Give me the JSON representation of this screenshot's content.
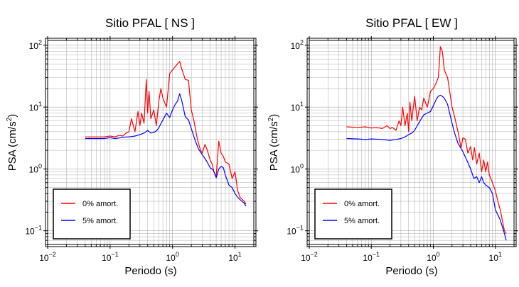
{
  "chart_data": [
    {
      "type": "line",
      "title": "Sitio PFAL [ NS ]",
      "xlabel": "Periodo (s)",
      "ylabel_main": "PSA (cm/s",
      "ylabel_sup": "2",
      "ylabel_end": ")",
      "xscale": "log",
      "yscale": "log",
      "xlim": [
        0.01,
        20
      ],
      "ylim": [
        0.06,
        120
      ],
      "grid": true,
      "legend_position": "bottom-left",
      "x_tick_labels": [
        {
          "value": 0.01,
          "base": "10",
          "exp": "−2"
        },
        {
          "value": 0.1,
          "base": "10",
          "exp": "−1"
        },
        {
          "value": 1,
          "base": "10",
          "exp": "0"
        },
        {
          "value": 10,
          "base": "10",
          "exp": "1"
        }
      ],
      "y_tick_labels": [
        {
          "value": 0.1,
          "base": "10",
          "exp": "−1"
        },
        {
          "value": 1,
          "base": "10",
          "exp": "0"
        },
        {
          "value": 10,
          "base": "10",
          "exp": "1"
        },
        {
          "value": 100,
          "base": "10",
          "exp": "2"
        }
      ],
      "series": [
        {
          "name": "0% amort.",
          "color": "#ff0000",
          "x": [
            0.04,
            0.06,
            0.08,
            0.1,
            0.12,
            0.14,
            0.16,
            0.18,
            0.2,
            0.22,
            0.25,
            0.28,
            0.3,
            0.32,
            0.35,
            0.38,
            0.4,
            0.42,
            0.45,
            0.5,
            0.55,
            0.6,
            0.65,
            0.7,
            0.8,
            0.9,
            1.0,
            1.1,
            1.2,
            1.3,
            1.4,
            1.6,
            1.8,
            2.0,
            2.2,
            2.5,
            2.8,
            3.0,
            3.3,
            3.6,
            4.0,
            4.3,
            4.6,
            5.0,
            5.5,
            6.0,
            6.5,
            7.0,
            8.0,
            9.0,
            10.0,
            11.0,
            12.0,
            14.0,
            15.0
          ],
          "y": [
            3.3,
            3.3,
            3.3,
            3.4,
            3.3,
            3.5,
            3.4,
            3.8,
            4.0,
            6.5,
            4.0,
            8.5,
            5.0,
            8.0,
            5.5,
            28.0,
            8.0,
            18.0,
            6.5,
            9.0,
            5.0,
            12.0,
            20.0,
            14.0,
            10.0,
            35.0,
            40.0,
            45.0,
            50.0,
            55.0,
            42.0,
            28.0,
            27.0,
            9.0,
            6.0,
            3.0,
            2.0,
            1.8,
            2.5,
            2.0,
            1.4,
            1.2,
            0.9,
            0.75,
            2.8,
            1.8,
            1.6,
            1.3,
            1.2,
            0.7,
            0.9,
            0.45,
            0.35,
            0.3,
            0.27
          ]
        },
        {
          "name": "5% amort.",
          "color": "#0000ff",
          "x": [
            0.04,
            0.06,
            0.08,
            0.1,
            0.12,
            0.15,
            0.18,
            0.2,
            0.25,
            0.3,
            0.35,
            0.4,
            0.45,
            0.5,
            0.55,
            0.6,
            0.65,
            0.7,
            0.8,
            0.9,
            1.0,
            1.1,
            1.2,
            1.3,
            1.4,
            1.6,
            1.8,
            2.0,
            2.3,
            2.6,
            3.0,
            3.5,
            4.0,
            4.5,
            5.0,
            5.5,
            6.0,
            6.5,
            7.0,
            8.0,
            9.0,
            10.0,
            11.0,
            12.0,
            14.0,
            15.0
          ],
          "y": [
            3.1,
            3.1,
            3.1,
            3.2,
            3.1,
            3.2,
            3.3,
            3.3,
            3.4,
            3.6,
            3.8,
            4.2,
            3.8,
            3.9,
            4.1,
            4.6,
            5.4,
            6.2,
            8.0,
            6.8,
            9.0,
            11.0,
            12.5,
            16.5,
            13.0,
            7.0,
            6.2,
            4.5,
            2.9,
            2.1,
            1.7,
            1.35,
            1.05,
            0.95,
            0.72,
            1.0,
            1.1,
            1.05,
            0.8,
            0.55,
            0.5,
            0.4,
            0.35,
            0.32,
            0.28,
            0.25
          ]
        }
      ]
    },
    {
      "type": "line",
      "title": "Sitio PFAL [ EW ]",
      "xlabel": "Periodo (s)",
      "ylabel_main": "PSA (cm/s",
      "ylabel_sup": "2",
      "ylabel_end": ")",
      "xscale": "log",
      "yscale": "log",
      "xlim": [
        0.01,
        20
      ],
      "ylim": [
        0.06,
        120
      ],
      "grid": true,
      "legend_position": "bottom-left",
      "x_tick_labels": [
        {
          "value": 0.01,
          "base": "10",
          "exp": "−2"
        },
        {
          "value": 0.1,
          "base": "10",
          "exp": "−1"
        },
        {
          "value": 1,
          "base": "10",
          "exp": "0"
        },
        {
          "value": 10,
          "base": "10",
          "exp": "1"
        }
      ],
      "y_tick_labels": [
        {
          "value": 0.1,
          "base": "10",
          "exp": "−1"
        },
        {
          "value": 1,
          "base": "10",
          "exp": "0"
        },
        {
          "value": 10,
          "base": "10",
          "exp": "1"
        },
        {
          "value": 100,
          "base": "10",
          "exp": "2"
        }
      ],
      "series": [
        {
          "name": "0% amort.",
          "color": "#ff0000",
          "x": [
            0.04,
            0.06,
            0.08,
            0.1,
            0.12,
            0.15,
            0.18,
            0.2,
            0.22,
            0.25,
            0.28,
            0.3,
            0.32,
            0.35,
            0.38,
            0.4,
            0.42,
            0.45,
            0.5,
            0.55,
            0.6,
            0.65,
            0.7,
            0.8,
            0.9,
            1.0,
            1.1,
            1.2,
            1.25,
            1.3,
            1.4,
            1.5,
            1.7,
            2.0,
            2.2,
            2.5,
            2.8,
            3.0,
            3.3,
            3.6,
            4.0,
            4.3,
            4.6,
            5.0,
            5.5,
            6.0,
            6.5,
            7.0,
            7.5,
            8.0,
            9.0,
            10.0,
            11.0,
            12.0,
            14.0,
            15.0
          ],
          "y": [
            4.8,
            4.7,
            4.8,
            4.6,
            4.7,
            4.5,
            5.0,
            4.5,
            4.7,
            4.2,
            6.0,
            5.0,
            10.0,
            5.0,
            8.0,
            4.0,
            12.0,
            6.0,
            15.0,
            6.0,
            10.0,
            9.0,
            14.0,
            10.0,
            18.0,
            20.0,
            24.0,
            30.0,
            50.0,
            95.0,
            80.0,
            40.0,
            30.0,
            10.0,
            7.0,
            4.0,
            2.2,
            3.2,
            3.0,
            1.8,
            2.3,
            1.4,
            2.2,
            1.2,
            1.8,
            0.9,
            1.4,
            0.9,
            1.3,
            0.8,
            0.6,
            0.45,
            0.3,
            0.22,
            0.1,
            0.09
          ]
        },
        {
          "name": "5% amort.",
          "color": "#0000ff",
          "x": [
            0.04,
            0.06,
            0.08,
            0.1,
            0.15,
            0.2,
            0.25,
            0.3,
            0.35,
            0.4,
            0.45,
            0.5,
            0.55,
            0.6,
            0.7,
            0.8,
            0.9,
            1.0,
            1.1,
            1.2,
            1.3,
            1.4,
            1.5,
            1.7,
            2.0,
            2.2,
            2.5,
            3.0,
            3.5,
            4.0,
            4.5,
            5.0,
            5.5,
            6.0,
            6.5,
            7.0,
            8.0,
            9.0,
            10.0,
            11.0,
            12.0,
            14.0,
            15.0
          ],
          "y": [
            3.1,
            3.05,
            3.0,
            3.05,
            3.0,
            2.9,
            3.0,
            3.1,
            3.3,
            3.6,
            3.8,
            4.2,
            5.0,
            5.8,
            7.5,
            8.0,
            8.5,
            10.5,
            13.0,
            15.0,
            15.5,
            15.0,
            14.0,
            11.0,
            5.5,
            3.8,
            2.6,
            1.9,
            1.35,
            1.0,
            0.7,
            0.75,
            0.6,
            0.75,
            0.6,
            0.55,
            0.5,
            0.4,
            0.22,
            0.18,
            0.15,
            0.09,
            0.07
          ]
        }
      ]
    }
  ]
}
